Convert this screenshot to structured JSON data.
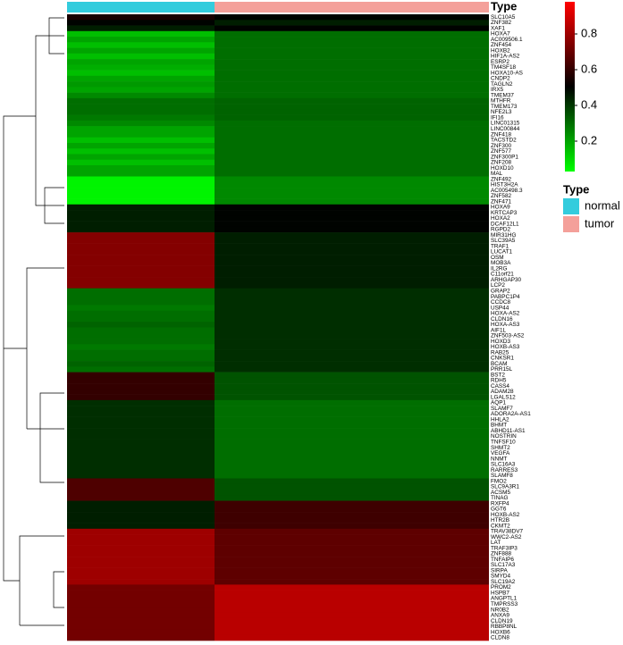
{
  "chart_data": {
    "type": "heatmap",
    "legend_title": "Type",
    "categories": [
      "SLC10A5",
      "ZNF382",
      "XAF1",
      "HOXA7",
      "AC009506.1",
      "ZNF454",
      "HOXB2",
      "HIF1A-AS2",
      "ESRP2",
      "TM4SF18",
      "HOXA10-AS",
      "CNDP2",
      "TAGLN2",
      "IRX5",
      "TMEM37",
      "MTHFR",
      "TMEM173",
      "NFE2L3",
      "IFI16",
      "LINC01315",
      "LINC00844",
      "ZNF418",
      "TACSTD2",
      "ZNF300",
      "ZNF577",
      "ZNF300P1",
      "ZNF208",
      "HOXD10",
      "MAL",
      "ZNF492",
      "HIST3H2A",
      "AC005498.3",
      "ZNF582",
      "ZNF471",
      "HOXA9",
      "KRTCAP3",
      "HOXA2",
      "DCAF12L1",
      "RGPD2",
      "MIR31HG",
      "SLC39A5",
      "TRAF1",
      "LUCAT1",
      "OSM",
      "MOB3A",
      "IL2RG",
      "C11orf21",
      "ARHGAP30",
      "LCP2",
      "GRAP2",
      "PABPC1P4",
      "CCDC8",
      "USP44",
      "HOXA-AS2",
      "CLDN16",
      "HOXA-AS3",
      "AIF1L",
      "ZNF503-AS2",
      "HOXD3",
      "HOXB-AS3",
      "RAB25",
      "CNKSR1",
      "BCAM",
      "PRR15L",
      "BST2",
      "RDH5",
      "CASS4",
      "ADAM28",
      "LGALS12",
      "AQP1",
      "SLAMF7",
      "ADORA2A-AS1",
      "HHLA2",
      "BHMT",
      "ABHD11-AS1",
      "NOSTRIN",
      "TNFSF10",
      "SHMT2",
      "VEGFA",
      "NNMT",
      "SLC16A3",
      "RARRES3",
      "SLAMF8",
      "FMO2",
      "SLC9A3R1",
      "ACSM5",
      "TINAG",
      "RXFP4",
      "GGT6",
      "HOXB-AS2",
      "HTR2B",
      "CKMT2",
      "TRAV38DV7",
      "WWC2-AS2",
      "LAT",
      "TRAF3IP3",
      "ZNF888",
      "TNFAIP6",
      "SLC17A3",
      "SIRPA",
      "SMYD4",
      "SLC19A2",
      "PROM2",
      "HSPB7",
      "ANGPTL1",
      "TMPRSS3",
      "NR0B2",
      "ANXA9",
      "CLDN19",
      "RBBP8NL",
      "HOXB6",
      "CLDN8"
    ],
    "series": [
      {
        "name": "normal",
        "color": "#33CCDD",
        "values": [
          0.55,
          0.5,
          0.45,
          0.15,
          0.2,
          0.15,
          0.2,
          0.15,
          0.2,
          0.18,
          0.15,
          0.2,
          0.22,
          0.2,
          0.25,
          0.3,
          0.3,
          0.3,
          0.28,
          0.25,
          0.2,
          0.2,
          0.15,
          0.2,
          0.15,
          0.2,
          0.15,
          0.2,
          0.2,
          0.05,
          0.05,
          0.05,
          0.05,
          0.05,
          0.45,
          0.45,
          0.45,
          0.45,
          0.45,
          0.75,
          0.75,
          0.75,
          0.75,
          0.75,
          0.75,
          0.75,
          0.75,
          0.75,
          0.75,
          0.3,
          0.3,
          0.3,
          0.28,
          0.3,
          0.3,
          0.32,
          0.3,
          0.3,
          0.3,
          0.28,
          0.3,
          0.3,
          0.32,
          0.3,
          0.6,
          0.6,
          0.6,
          0.6,
          0.6,
          0.42,
          0.42,
          0.42,
          0.42,
          0.42,
          0.42,
          0.42,
          0.42,
          0.42,
          0.42,
          0.42,
          0.42,
          0.42,
          0.42,
          0.65,
          0.65,
          0.65,
          0.65,
          0.45,
          0.45,
          0.45,
          0.45,
          0.45,
          0.8,
          0.8,
          0.8,
          0.8,
          0.8,
          0.8,
          0.8,
          0.8,
          0.8,
          0.8,
          0.72,
          0.72,
          0.72,
          0.72,
          0.72,
          0.72,
          0.72,
          0.72,
          0.72,
          0.72
        ]
      },
      {
        "name": "tumor",
        "color": "#F4A09A",
        "values": [
          0.5,
          0.45,
          0.5,
          0.3,
          0.3,
          0.3,
          0.3,
          0.3,
          0.3,
          0.3,
          0.3,
          0.3,
          0.3,
          0.3,
          0.3,
          0.32,
          0.32,
          0.32,
          0.32,
          0.3,
          0.3,
          0.3,
          0.3,
          0.3,
          0.3,
          0.3,
          0.3,
          0.3,
          0.3,
          0.25,
          0.25,
          0.25,
          0.25,
          0.25,
          0.5,
          0.5,
          0.5,
          0.5,
          0.5,
          0.45,
          0.45,
          0.45,
          0.45,
          0.45,
          0.45,
          0.45,
          0.45,
          0.45,
          0.45,
          0.42,
          0.42,
          0.42,
          0.42,
          0.42,
          0.42,
          0.42,
          0.42,
          0.42,
          0.42,
          0.42,
          0.42,
          0.42,
          0.42,
          0.42,
          0.35,
          0.35,
          0.35,
          0.35,
          0.35,
          0.3,
          0.3,
          0.3,
          0.3,
          0.3,
          0.3,
          0.3,
          0.3,
          0.3,
          0.3,
          0.3,
          0.3,
          0.3,
          0.3,
          0.35,
          0.35,
          0.35,
          0.35,
          0.62,
          0.62,
          0.62,
          0.62,
          0.62,
          0.68,
          0.68,
          0.68,
          0.68,
          0.68,
          0.68,
          0.68,
          0.68,
          0.68,
          0.68,
          0.85,
          0.85,
          0.85,
          0.85,
          0.85,
          0.85,
          0.85,
          0.85,
          0.85,
          0.85
        ]
      }
    ],
    "colorbar": {
      "lim": [
        0.03,
        0.98
      ],
      "ticks": [
        0.2,
        0.4,
        0.6,
        0.8
      ],
      "colors": [
        "#00ff00",
        "#000000",
        "#ff0000"
      ]
    }
  }
}
